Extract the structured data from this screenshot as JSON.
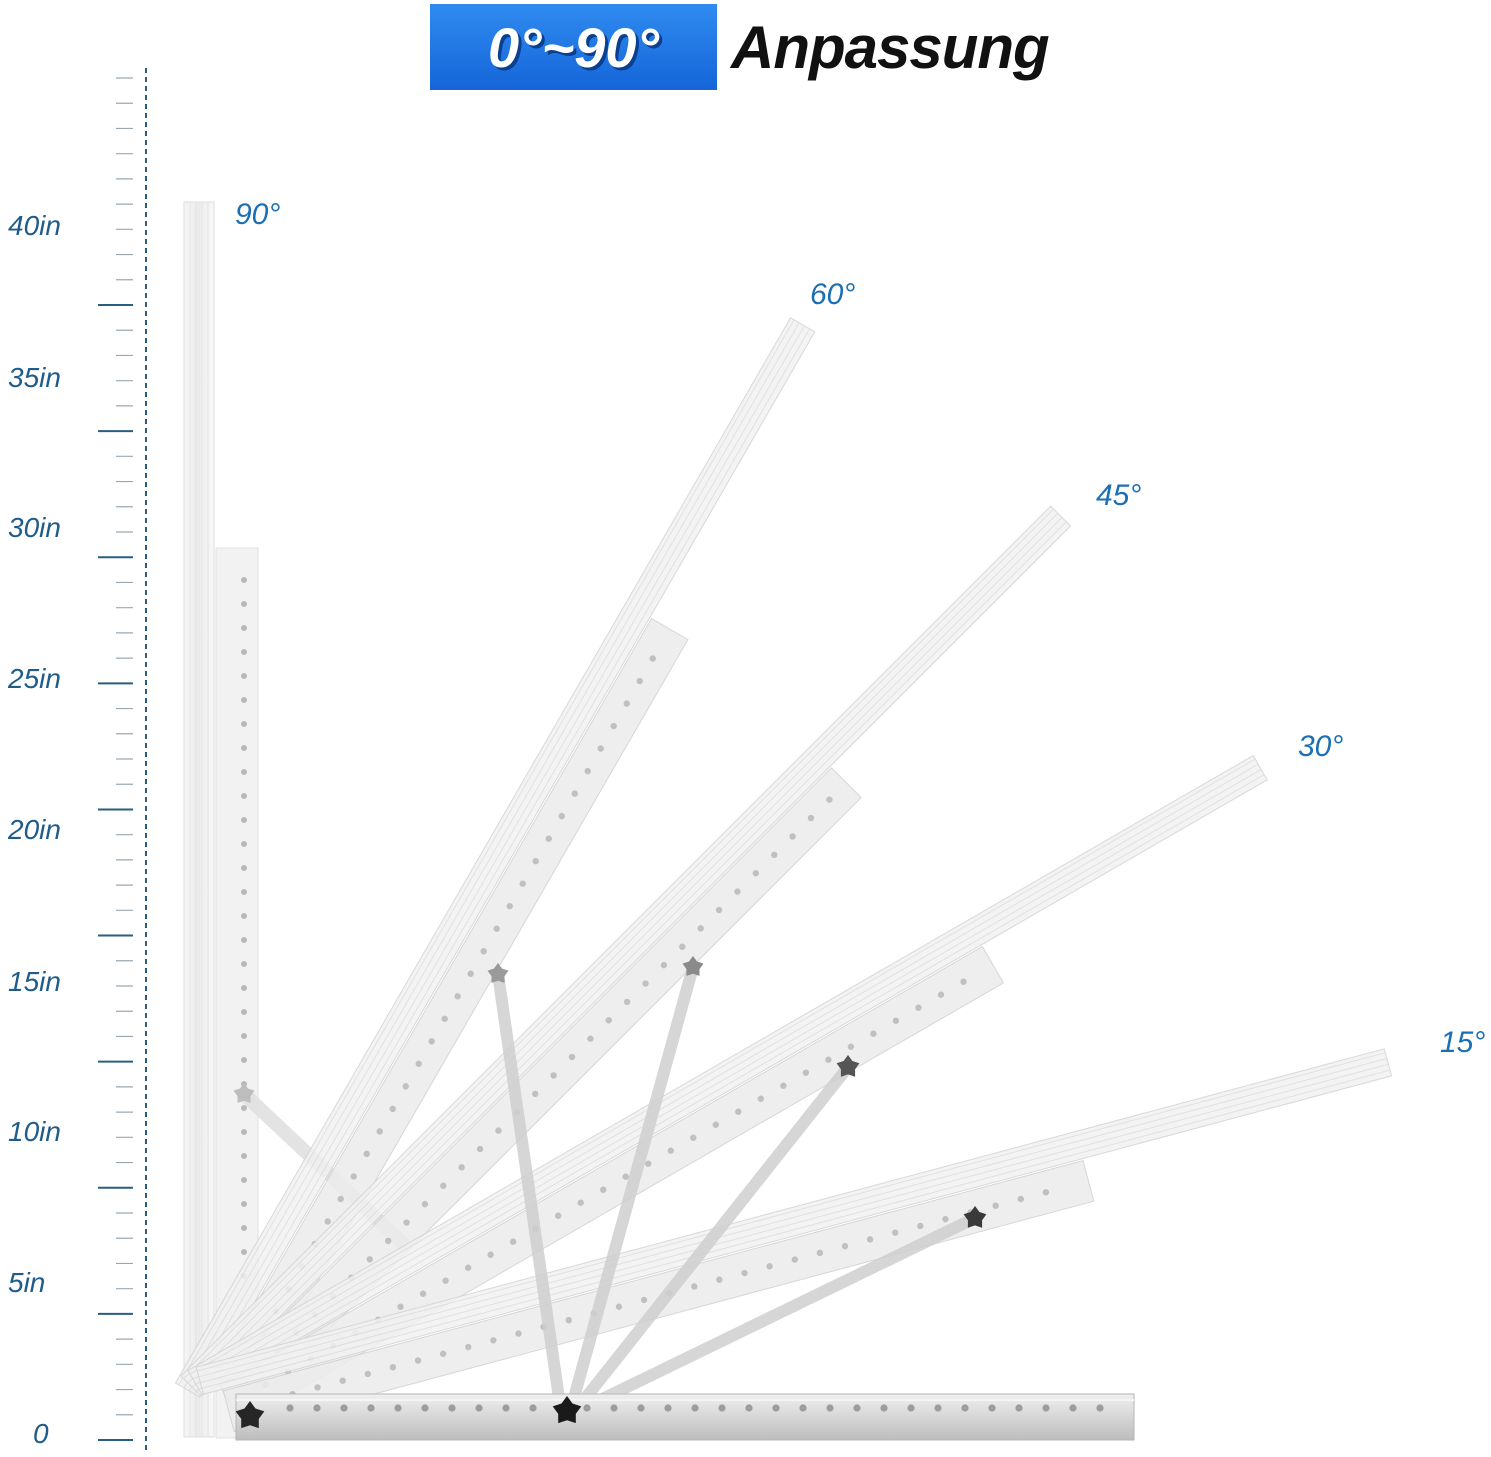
{
  "header": {
    "badge_text": "0°~90°",
    "title": "Anpassung",
    "badge_color": "#1e74e6"
  },
  "scale": {
    "labels": [
      "40in",
      "35in",
      "30in",
      "25in",
      "20in",
      "15in",
      "10in",
      "5in",
      "0"
    ],
    "color": "#1f5c8a"
  },
  "angles": [
    "90°",
    "60°",
    "45°",
    "30°",
    "15°"
  ],
  "accent_color": "#1a6fb5"
}
